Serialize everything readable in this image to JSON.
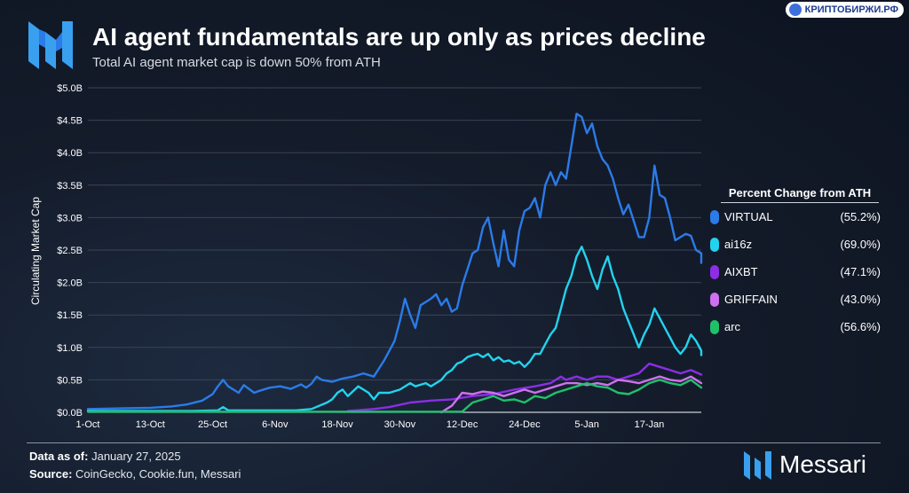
{
  "header": {
    "title": "AI agent fundamentals are up only as prices decline",
    "subtitle": "Total AI agent market cap is down 50% from ATH"
  },
  "watermark": {
    "text": "КРИПТОБИРЖИ.РФ"
  },
  "legend": {
    "title": "Percent Change from ATH",
    "items": [
      {
        "name": "VIRTUAL",
        "value": "(55.2%)",
        "color": "#2b7be8"
      },
      {
        "name": "ai16z",
        "value": "(69.0%)",
        "color": "#22d3ee"
      },
      {
        "name": "AIXBT",
        "value": "(47.1%)",
        "color": "#8b2ee6"
      },
      {
        "name": "GRIFFAIN",
        "value": "(43.0%)",
        "color": "#d070f0"
      },
      {
        "name": "arc",
        "value": "(56.6%)",
        "color": "#20c06a"
      }
    ]
  },
  "footer": {
    "date_label": "Data as of:",
    "date_value": "January 27, 2025",
    "source_label": "Source:",
    "source_value": "CoinGecko, Cookie.fun, Messari",
    "brand": "Messari"
  },
  "chart_data": {
    "type": "line",
    "ylabel": "Circulating Market Cap",
    "xlabel": "",
    "ylim": [
      0,
      5.0
    ],
    "yticks": [
      0,
      0.5,
      1.0,
      1.5,
      2.0,
      2.5,
      3.0,
      3.5,
      4.0,
      4.5,
      5.0
    ],
    "ytick_labels": [
      "$0.0B",
      "$0.5B",
      "$1.0B",
      "$1.5B",
      "$2.0B",
      "$2.5B",
      "$3.0B",
      "$3.5B",
      "$4.0B",
      "$4.5B",
      "$5.0B"
    ],
    "x_unit": "days since 1-Oct",
    "xlim": [
      0,
      118
    ],
    "xticks": [
      0,
      12,
      24,
      36,
      48,
      60,
      72,
      84,
      96,
      108
    ],
    "xtick_labels": [
      "1-Oct",
      "13-Oct",
      "25-Oct",
      "6-Nov",
      "18-Nov",
      "30-Nov",
      "12-Dec",
      "24-Dec",
      "5-Jan",
      "17-Jan"
    ],
    "grid": true,
    "series": [
      {
        "name": "VIRTUAL",
        "color": "#2b7be8",
        "points": [
          [
            0,
            0.05
          ],
          [
            6,
            0.06
          ],
          [
            12,
            0.07
          ],
          [
            16,
            0.09
          ],
          [
            19,
            0.12
          ],
          [
            22,
            0.18
          ],
          [
            24,
            0.28
          ],
          [
            25,
            0.4
          ],
          [
            26,
            0.5
          ],
          [
            27,
            0.4
          ],
          [
            28,
            0.35
          ],
          [
            29,
            0.3
          ],
          [
            30,
            0.42
          ],
          [
            31,
            0.36
          ],
          [
            32,
            0.3
          ],
          [
            33,
            0.33
          ],
          [
            35,
            0.38
          ],
          [
            37,
            0.4
          ],
          [
            39,
            0.36
          ],
          [
            41,
            0.43
          ],
          [
            42,
            0.38
          ],
          [
            43,
            0.44
          ],
          [
            44,
            0.55
          ],
          [
            45,
            0.5
          ],
          [
            47,
            0.47
          ],
          [
            49,
            0.52
          ],
          [
            51,
            0.55
          ],
          [
            53,
            0.6
          ],
          [
            55,
            0.55
          ],
          [
            57,
            0.8
          ],
          [
            59,
            1.1
          ],
          [
            60,
            1.4
          ],
          [
            61,
            1.75
          ],
          [
            62,
            1.5
          ],
          [
            63,
            1.3
          ],
          [
            64,
            1.65
          ],
          [
            65,
            1.7
          ],
          [
            66,
            1.75
          ],
          [
            67,
            1.82
          ],
          [
            68,
            1.65
          ],
          [
            69,
            1.75
          ],
          [
            70,
            1.55
          ],
          [
            71,
            1.6
          ],
          [
            72,
            1.95
          ],
          [
            73,
            2.2
          ],
          [
            74,
            2.45
          ],
          [
            75,
            2.5
          ],
          [
            76,
            2.85
          ],
          [
            77,
            3.0
          ],
          [
            78,
            2.6
          ],
          [
            79,
            2.25
          ],
          [
            80,
            2.8
          ],
          [
            81,
            2.35
          ],
          [
            82,
            2.25
          ],
          [
            83,
            2.8
          ],
          [
            84,
            3.1
          ],
          [
            85,
            3.15
          ],
          [
            86,
            3.3
          ],
          [
            87,
            3.0
          ],
          [
            88,
            3.5
          ],
          [
            89,
            3.7
          ],
          [
            90,
            3.5
          ],
          [
            91,
            3.7
          ],
          [
            92,
            3.6
          ],
          [
            93,
            4.1
          ],
          [
            94,
            4.6
          ],
          [
            95,
            4.55
          ],
          [
            96,
            4.3
          ],
          [
            97,
            4.45
          ],
          [
            98,
            4.1
          ],
          [
            99,
            3.9
          ],
          [
            100,
            3.8
          ],
          [
            101,
            3.6
          ],
          [
            102,
            3.3
          ],
          [
            103,
            3.05
          ],
          [
            104,
            3.2
          ],
          [
            105,
            2.95
          ],
          [
            106,
            2.7
          ],
          [
            107,
            2.7
          ],
          [
            108,
            3.0
          ],
          [
            109,
            3.8
          ],
          [
            110,
            3.35
          ],
          [
            111,
            3.3
          ],
          [
            112,
            3.0
          ],
          [
            113,
            2.65
          ],
          [
            114,
            2.7
          ],
          [
            115,
            2.75
          ],
          [
            116,
            2.72
          ],
          [
            117,
            2.5
          ],
          [
            118,
            2.45
          ],
          [
            119,
            2.3
          ]
        ]
      },
      {
        "name": "ai16z",
        "color": "#22d3ee",
        "points": [
          [
            0,
            0.02
          ],
          [
            20,
            0.02
          ],
          [
            25,
            0.03
          ],
          [
            26,
            0.08
          ],
          [
            27,
            0.03
          ],
          [
            40,
            0.03
          ],
          [
            43,
            0.05
          ],
          [
            46,
            0.15
          ],
          [
            47,
            0.2
          ],
          [
            48,
            0.3
          ],
          [
            49,
            0.35
          ],
          [
            50,
            0.25
          ],
          [
            52,
            0.4
          ],
          [
            53,
            0.35
          ],
          [
            54,
            0.3
          ],
          [
            55,
            0.2
          ],
          [
            56,
            0.3
          ],
          [
            58,
            0.3
          ],
          [
            60,
            0.35
          ],
          [
            62,
            0.45
          ],
          [
            63,
            0.4
          ],
          [
            65,
            0.45
          ],
          [
            66,
            0.4
          ],
          [
            68,
            0.5
          ],
          [
            69,
            0.6
          ],
          [
            70,
            0.65
          ],
          [
            71,
            0.75
          ],
          [
            72,
            0.78
          ],
          [
            73,
            0.85
          ],
          [
            74,
            0.88
          ],
          [
            75,
            0.9
          ],
          [
            76,
            0.85
          ],
          [
            77,
            0.9
          ],
          [
            78,
            0.8
          ],
          [
            79,
            0.85
          ],
          [
            80,
            0.78
          ],
          [
            81,
            0.8
          ],
          [
            82,
            0.75
          ],
          [
            83,
            0.78
          ],
          [
            84,
            0.7
          ],
          [
            85,
            0.78
          ],
          [
            86,
            0.9
          ],
          [
            87,
            0.9
          ],
          [
            88,
            1.05
          ],
          [
            89,
            1.2
          ],
          [
            90,
            1.3
          ],
          [
            91,
            1.6
          ],
          [
            92,
            1.9
          ],
          [
            93,
            2.1
          ],
          [
            94,
            2.4
          ],
          [
            95,
            2.55
          ],
          [
            96,
            2.35
          ],
          [
            97,
            2.1
          ],
          [
            98,
            1.9
          ],
          [
            99,
            2.2
          ],
          [
            100,
            2.4
          ],
          [
            101,
            2.1
          ],
          [
            102,
            1.9
          ],
          [
            103,
            1.6
          ],
          [
            104,
            1.4
          ],
          [
            105,
            1.2
          ],
          [
            106,
            1.0
          ],
          [
            107,
            1.2
          ],
          [
            108,
            1.35
          ],
          [
            109,
            1.6
          ],
          [
            110,
            1.45
          ],
          [
            111,
            1.3
          ],
          [
            112,
            1.15
          ],
          [
            113,
            1.0
          ],
          [
            114,
            0.9
          ],
          [
            115,
            1.0
          ],
          [
            116,
            1.2
          ],
          [
            117,
            1.1
          ],
          [
            118,
            0.95
          ],
          [
            119,
            0.88
          ],
          [
            120,
            0.85
          ]
        ]
      },
      {
        "name": "AIXBT",
        "color": "#8b2ee6",
        "points": [
          [
            50,
            0.02
          ],
          [
            55,
            0.05
          ],
          [
            58,
            0.08
          ],
          [
            62,
            0.15
          ],
          [
            66,
            0.18
          ],
          [
            70,
            0.2
          ],
          [
            74,
            0.25
          ],
          [
            78,
            0.28
          ],
          [
            82,
            0.35
          ],
          [
            86,
            0.4
          ],
          [
            89,
            0.45
          ],
          [
            91,
            0.55
          ],
          [
            92,
            0.5
          ],
          [
            94,
            0.55
          ],
          [
            96,
            0.5
          ],
          [
            98,
            0.55
          ],
          [
            100,
            0.55
          ],
          [
            102,
            0.5
          ],
          [
            104,
            0.55
          ],
          [
            106,
            0.6
          ],
          [
            108,
            0.75
          ],
          [
            110,
            0.7
          ],
          [
            112,
            0.65
          ],
          [
            114,
            0.6
          ],
          [
            116,
            0.65
          ],
          [
            118,
            0.58
          ],
          [
            120,
            0.52
          ]
        ]
      },
      {
        "name": "GRIFFAIN",
        "color": "#d070f0",
        "points": [
          [
            68,
            0.0
          ],
          [
            70,
            0.1
          ],
          [
            71,
            0.2
          ],
          [
            72,
            0.3
          ],
          [
            74,
            0.28
          ],
          [
            76,
            0.32
          ],
          [
            78,
            0.3
          ],
          [
            80,
            0.25
          ],
          [
            82,
            0.3
          ],
          [
            84,
            0.35
          ],
          [
            86,
            0.3
          ],
          [
            88,
            0.35
          ],
          [
            90,
            0.4
          ],
          [
            92,
            0.45
          ],
          [
            94,
            0.45
          ],
          [
            96,
            0.42
          ],
          [
            98,
            0.45
          ],
          [
            100,
            0.42
          ],
          [
            102,
            0.5
          ],
          [
            104,
            0.48
          ],
          [
            106,
            0.45
          ],
          [
            108,
            0.5
          ],
          [
            110,
            0.55
          ],
          [
            112,
            0.5
          ],
          [
            114,
            0.48
          ],
          [
            116,
            0.55
          ],
          [
            118,
            0.45
          ],
          [
            120,
            0.4
          ]
        ]
      },
      {
        "name": "arc",
        "color": "#20c06a",
        "points": [
          [
            0,
            0.01
          ],
          [
            72,
            0.01
          ],
          [
            74,
            0.15
          ],
          [
            76,
            0.2
          ],
          [
            78,
            0.25
          ],
          [
            80,
            0.18
          ],
          [
            82,
            0.2
          ],
          [
            84,
            0.15
          ],
          [
            86,
            0.25
          ],
          [
            88,
            0.22
          ],
          [
            90,
            0.3
          ],
          [
            92,
            0.35
          ],
          [
            94,
            0.4
          ],
          [
            96,
            0.45
          ],
          [
            98,
            0.4
          ],
          [
            100,
            0.38
          ],
          [
            102,
            0.3
          ],
          [
            104,
            0.28
          ],
          [
            106,
            0.35
          ],
          [
            108,
            0.45
          ],
          [
            110,
            0.5
          ],
          [
            112,
            0.45
          ],
          [
            114,
            0.42
          ],
          [
            116,
            0.5
          ],
          [
            118,
            0.38
          ],
          [
            120,
            0.28
          ]
        ]
      }
    ]
  }
}
